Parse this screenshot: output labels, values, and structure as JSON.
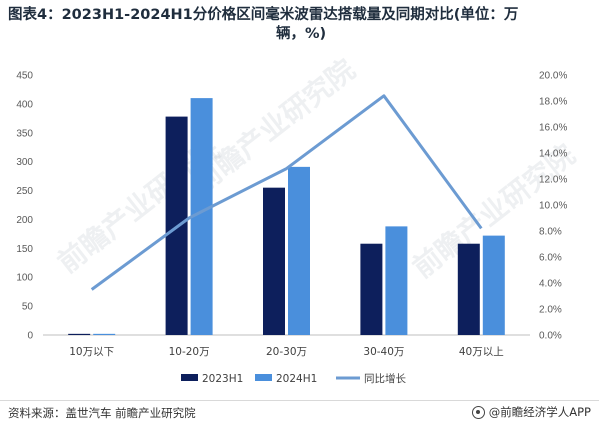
{
  "title": {
    "line1": "图表4：2023H1-2024H1分价格区间毫米波雷达搭载量及同期对比(单位：万",
    "line2": "辆，%)"
  },
  "source": "资料来源：盖世汽车 前瞻产业研究院",
  "brand": "@前瞻经济学人APP",
  "watermark": "前瞻产业研究院",
  "colors": {
    "series_2023H1": "#0d1f5c",
    "series_2024H1": "#4a8fdc",
    "series_yoy": "#6c9bd2"
  },
  "chart_data": {
    "type": "bar",
    "categories": [
      "10万以下",
      "10-20万",
      "20-30万",
      "30-40万",
      "40万以上"
    ],
    "series": [
      {
        "name": "2023H1",
        "type": "bar",
        "axis": "left",
        "values": [
          2,
          378,
          255,
          158,
          158
        ]
      },
      {
        "name": "2024H1",
        "type": "bar",
        "axis": "left",
        "values": [
          2,
          410,
          291,
          188,
          172
        ]
      },
      {
        "name": "同比增长",
        "type": "line",
        "axis": "right",
        "values": [
          3.5,
          9.0,
          12.8,
          18.4,
          8.2
        ]
      }
    ],
    "y_left": {
      "ylim": [
        0,
        450
      ],
      "ticks": [
        "0",
        "50",
        "100",
        "150",
        "200",
        "250",
        "300",
        "350",
        "400",
        "450"
      ]
    },
    "y_right": {
      "ylim": [
        0,
        20
      ],
      "ticks": [
        "0.0%",
        "2.0%",
        "4.0%",
        "6.0%",
        "8.0%",
        "10.0%",
        "12.0%",
        "14.0%",
        "16.0%",
        "18.0%",
        "20.0%"
      ]
    },
    "legend": {
      "placement": "bottom",
      "items": [
        "2023H1",
        "2024H1",
        "同比增长"
      ]
    },
    "grid": false
  }
}
